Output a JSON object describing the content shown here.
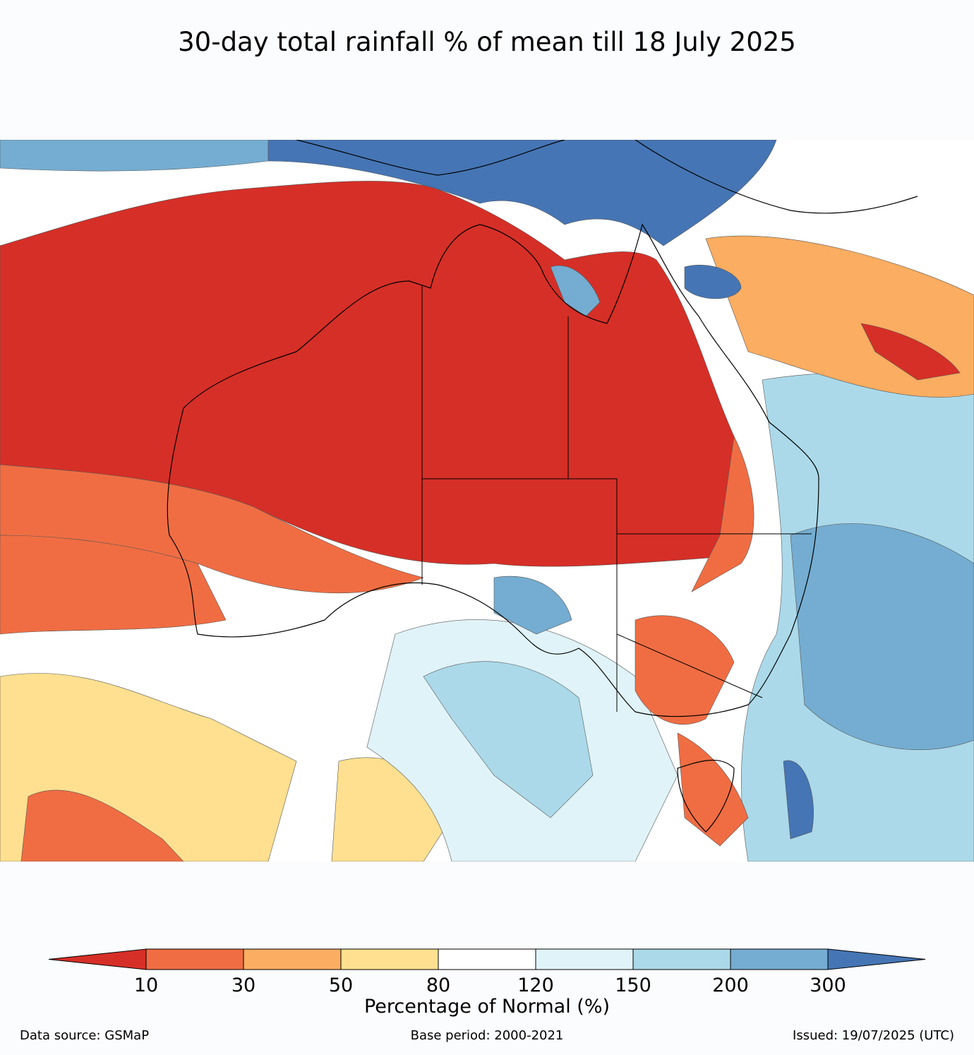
{
  "title": "30-day total rainfall % of mean till 18 July 2025",
  "colorbar": {
    "label": "Percentage of Normal (%)",
    "ticks": [
      "10",
      "30",
      "50",
      "80",
      "120",
      "150",
      "200",
      "300"
    ],
    "colors": [
      "#d62f27",
      "#f06d43",
      "#fbad61",
      "#fee090",
      "#ffffff",
      "#e0f3f8",
      "#abd9e9",
      "#74add1",
      "#4575b4"
    ]
  },
  "footer": {
    "source": "Data source: GSMaP",
    "base_period": "Base period: 2000-2021",
    "issued": "Issued: 19/07/2025 (UTC)"
  }
}
